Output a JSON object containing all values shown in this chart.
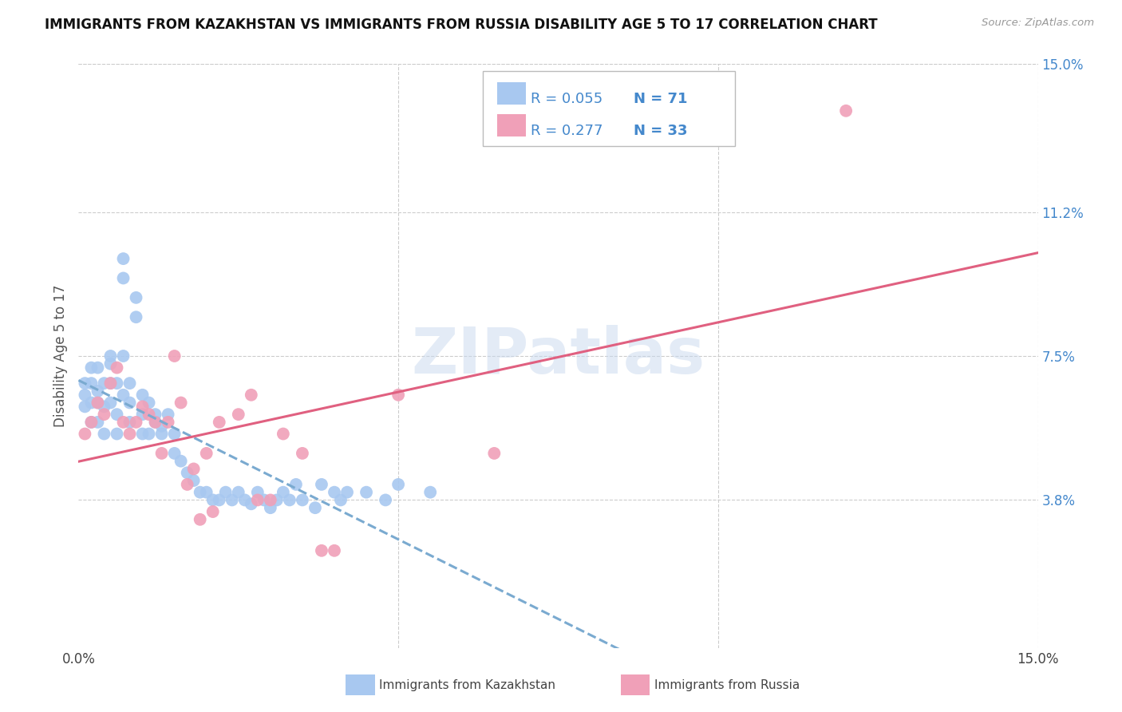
{
  "title": "IMMIGRANTS FROM KAZAKHSTAN VS IMMIGRANTS FROM RUSSIA DISABILITY AGE 5 TO 17 CORRELATION CHART",
  "source": "Source: ZipAtlas.com",
  "ylabel": "Disability Age 5 to 17",
  "xlim": [
    0.0,
    0.15
  ],
  "ylim": [
    0.0,
    0.15
  ],
  "ytick_values": [
    0.038,
    0.075,
    0.112,
    0.15
  ],
  "ytick_labels": [
    "3.8%",
    "7.5%",
    "11.2%",
    "15.0%"
  ],
  "xtick_positions": [
    0.0,
    0.05,
    0.1,
    0.15
  ],
  "xtick_labels": [
    "0.0%",
    "",
    "",
    "15.0%"
  ],
  "watermark_text": "ZIPatlas",
  "series": [
    {
      "label": "Immigrants from Kazakhstan",
      "R": 0.055,
      "N": 71,
      "color": "#a8c8f0",
      "trend_color": "#7aaad0",
      "trend_style": "--",
      "x": [
        0.001,
        0.001,
        0.001,
        0.002,
        0.002,
        0.002,
        0.002,
        0.003,
        0.003,
        0.003,
        0.003,
        0.004,
        0.004,
        0.004,
        0.005,
        0.005,
        0.005,
        0.005,
        0.006,
        0.006,
        0.006,
        0.007,
        0.007,
        0.007,
        0.007,
        0.008,
        0.008,
        0.008,
        0.009,
        0.009,
        0.01,
        0.01,
        0.01,
        0.011,
        0.011,
        0.012,
        0.012,
        0.013,
        0.013,
        0.014,
        0.015,
        0.015,
        0.016,
        0.017,
        0.018,
        0.019,
        0.02,
        0.021,
        0.022,
        0.023,
        0.024,
        0.025,
        0.026,
        0.027,
        0.028,
        0.029,
        0.03,
        0.031,
        0.032,
        0.033,
        0.034,
        0.035,
        0.037,
        0.038,
        0.04,
        0.041,
        0.042,
        0.045,
        0.048,
        0.05,
        0.055
      ],
      "y": [
        0.062,
        0.065,
        0.068,
        0.068,
        0.072,
        0.063,
        0.058,
        0.063,
        0.066,
        0.058,
        0.072,
        0.055,
        0.062,
        0.068,
        0.075,
        0.073,
        0.063,
        0.068,
        0.055,
        0.06,
        0.068,
        0.075,
        0.095,
        0.1,
        0.065,
        0.058,
        0.063,
        0.068,
        0.085,
        0.09,
        0.055,
        0.06,
        0.065,
        0.055,
        0.063,
        0.058,
        0.06,
        0.055,
        0.057,
        0.06,
        0.05,
        0.055,
        0.048,
        0.045,
        0.043,
        0.04,
        0.04,
        0.038,
        0.038,
        0.04,
        0.038,
        0.04,
        0.038,
        0.037,
        0.04,
        0.038,
        0.036,
        0.038,
        0.04,
        0.038,
        0.042,
        0.038,
        0.036,
        0.042,
        0.04,
        0.038,
        0.04,
        0.04,
        0.038,
        0.042,
        0.04
      ]
    },
    {
      "label": "Immigrants from Russia",
      "R": 0.277,
      "N": 33,
      "color": "#f0a0b8",
      "trend_color": "#e06080",
      "trend_style": "-",
      "x": [
        0.001,
        0.002,
        0.003,
        0.004,
        0.005,
        0.006,
        0.007,
        0.008,
        0.009,
        0.01,
        0.011,
        0.012,
        0.013,
        0.014,
        0.015,
        0.016,
        0.017,
        0.018,
        0.019,
        0.02,
        0.021,
        0.022,
        0.025,
        0.027,
        0.028,
        0.03,
        0.032,
        0.035,
        0.038,
        0.04,
        0.05,
        0.065,
        0.12
      ],
      "y": [
        0.055,
        0.058,
        0.063,
        0.06,
        0.068,
        0.072,
        0.058,
        0.055,
        0.058,
        0.062,
        0.06,
        0.058,
        0.05,
        0.058,
        0.075,
        0.063,
        0.042,
        0.046,
        0.033,
        0.05,
        0.035,
        0.058,
        0.06,
        0.065,
        0.038,
        0.038,
        0.055,
        0.05,
        0.025,
        0.025,
        0.065,
        0.05,
        0.138
      ]
    }
  ],
  "background_color": "#ffffff",
  "grid_color": "#cccccc",
  "title_color": "#111111",
  "right_ytick_color": "#4488cc"
}
